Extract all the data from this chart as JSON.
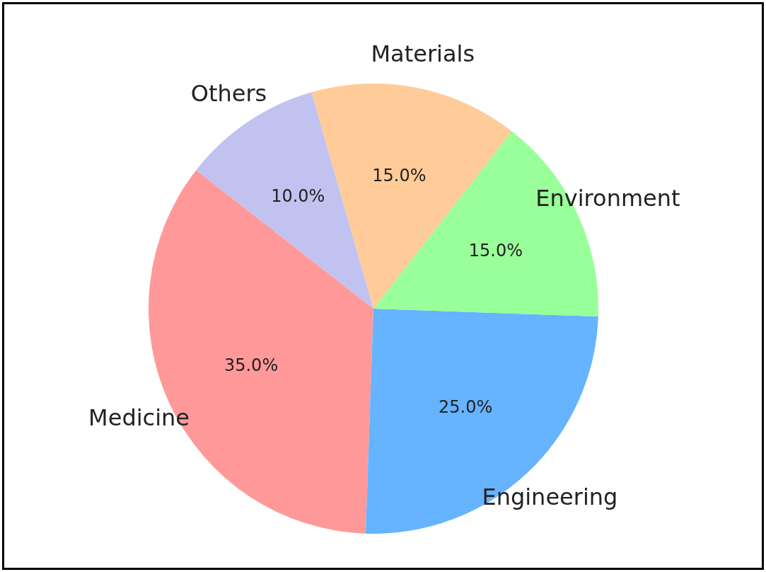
{
  "chart_data": {
    "type": "pie",
    "categories": [
      "Medicine",
      "Engineering",
      "Environment",
      "Materials",
      "Others"
    ],
    "values": [
      35,
      25,
      15,
      15,
      10
    ],
    "colors": [
      "#ff9999",
      "#66b3ff",
      "#99ff99",
      "#ffcc99",
      "#c2c2f0"
    ],
    "value_labels": [
      "35.0%",
      "25.0%",
      "15.0%",
      "15.0%",
      "10.0%"
    ]
  }
}
